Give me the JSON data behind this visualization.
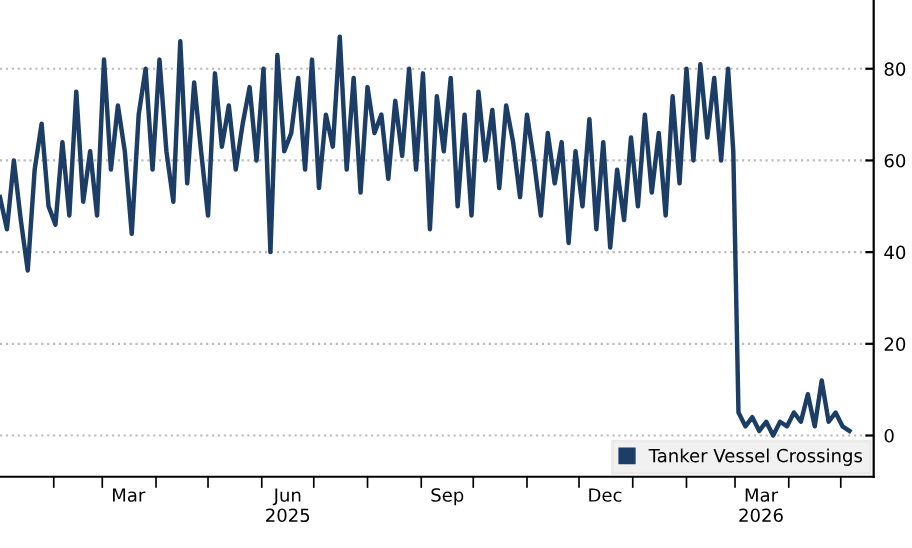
{
  "chart_data": {
    "type": "line",
    "x": [
      "2025-01-01",
      "2025-01-05",
      "2025-01-09",
      "2025-01-13",
      "2025-01-17",
      "2025-01-21",
      "2025-01-25",
      "2025-01-29",
      "2025-02-02",
      "2025-02-06",
      "2025-02-10",
      "2025-02-14",
      "2025-02-18",
      "2025-02-22",
      "2025-02-26",
      "2025-03-02",
      "2025-03-06",
      "2025-03-10",
      "2025-03-14",
      "2025-03-18",
      "2025-03-22",
      "2025-03-26",
      "2025-03-30",
      "2025-04-03",
      "2025-04-07",
      "2025-04-11",
      "2025-04-15",
      "2025-04-19",
      "2025-04-23",
      "2025-04-27",
      "2025-05-01",
      "2025-05-05",
      "2025-05-09",
      "2025-05-13",
      "2025-05-17",
      "2025-05-21",
      "2025-05-25",
      "2025-05-29",
      "2025-06-02",
      "2025-06-06",
      "2025-06-10",
      "2025-06-14",
      "2025-06-18",
      "2025-06-22",
      "2025-06-26",
      "2025-06-30",
      "2025-07-04",
      "2025-07-08",
      "2025-07-12",
      "2025-07-16",
      "2025-07-20",
      "2025-07-24",
      "2025-07-28",
      "2025-08-01",
      "2025-08-05",
      "2025-08-09",
      "2025-08-13",
      "2025-08-17",
      "2025-08-21",
      "2025-08-25",
      "2025-08-29",
      "2025-09-02",
      "2025-09-06",
      "2025-09-10",
      "2025-09-14",
      "2025-09-18",
      "2025-09-22",
      "2025-09-26",
      "2025-09-30",
      "2025-10-04",
      "2025-10-08",
      "2025-10-12",
      "2025-10-16",
      "2025-10-20",
      "2025-10-24",
      "2025-10-28",
      "2025-11-01",
      "2025-11-05",
      "2025-11-09",
      "2025-11-13",
      "2025-11-17",
      "2025-11-21",
      "2025-11-25",
      "2025-11-29",
      "2025-12-03",
      "2025-12-07",
      "2025-12-11",
      "2025-12-15",
      "2025-12-19",
      "2025-12-23",
      "2025-12-27",
      "2025-12-31",
      "2026-01-04",
      "2026-01-08",
      "2026-01-12",
      "2026-01-16",
      "2026-01-20",
      "2026-01-24",
      "2026-01-28",
      "2026-02-01",
      "2026-02-05",
      "2026-02-09",
      "2026-02-13",
      "2026-02-17",
      "2026-02-21",
      "2026-02-25",
      "2026-02-28",
      "2026-03-03",
      "2026-03-07",
      "2026-03-11",
      "2026-03-15",
      "2026-03-19",
      "2026-03-23",
      "2026-03-27",
      "2026-03-31",
      "2026-04-04",
      "2026-04-08",
      "2026-04-12",
      "2026-04-16",
      "2026-04-20",
      "2026-04-24",
      "2026-04-28",
      "2026-05-02",
      "2026-05-06"
    ],
    "series": [
      {
        "name": "Tanker Vessel Crossings",
        "color": "#1b3d66",
        "values": [
          52,
          45,
          60,
          47,
          36,
          58,
          68,
          50,
          46,
          64,
          48,
          75,
          51,
          62,
          48,
          82,
          58,
          72,
          62,
          44,
          70,
          80,
          58,
          82,
          62,
          51,
          86,
          55,
          77,
          62,
          48,
          79,
          63,
          72,
          58,
          68,
          76,
          60,
          80,
          40,
          83,
          62,
          66,
          78,
          58,
          82,
          54,
          70,
          63,
          87,
          58,
          78,
          53,
          76,
          66,
          70,
          56,
          73,
          61,
          80,
          58,
          79,
          45,
          74,
          62,
          78,
          50,
          70,
          48,
          75,
          60,
          71,
          54,
          72,
          64,
          52,
          70,
          60,
          48,
          66,
          55,
          64,
          42,
          62,
          50,
          69,
          45,
          64,
          41,
          58,
          47,
          65,
          50,
          70,
          53,
          66,
          48,
          74,
          55,
          80,
          60,
          81,
          65,
          78,
          60,
          80,
          62,
          5,
          2,
          4,
          1,
          3,
          0,
          3,
          2,
          5,
          3,
          9,
          2,
          12,
          3,
          5,
          2,
          1
        ]
      }
    ],
    "xlim": [
      "2025-01-01",
      "2026-05-20"
    ],
    "xticks": [
      {
        "value": "2025-02-01",
        "label": null
      },
      {
        "value": "2025-03-01",
        "label": null
      },
      {
        "value": "2025-03-16",
        "label": "Mar"
      },
      {
        "value": "2025-04-01",
        "label": null
      },
      {
        "value": "2025-05-01",
        "label": null
      },
      {
        "value": "2025-06-01",
        "label": null
      },
      {
        "value": "2025-06-16",
        "label": "Jun\n2025"
      },
      {
        "value": "2025-07-01",
        "label": null
      },
      {
        "value": "2025-08-01",
        "label": null
      },
      {
        "value": "2025-09-01",
        "label": null
      },
      {
        "value": "2025-09-16",
        "label": "Sep"
      },
      {
        "value": "2025-10-01",
        "label": null
      },
      {
        "value": "2025-11-01",
        "label": null
      },
      {
        "value": "2025-12-01",
        "label": null
      },
      {
        "value": "2025-12-16",
        "label": "Dec"
      },
      {
        "value": "2026-01-01",
        "label": null
      },
      {
        "value": "2026-02-01",
        "label": null
      },
      {
        "value": "2026-03-01",
        "label": null
      },
      {
        "value": "2026-03-16",
        "label": "Mar\n2026"
      },
      {
        "value": "2026-04-01",
        "label": null
      },
      {
        "value": "2026-05-01",
        "label": null
      }
    ],
    "ylim": [
      -9,
      95
    ],
    "yticks": [
      0,
      20,
      40,
      60,
      80
    ],
    "grid": "y",
    "legend": "bottom right",
    "line_style": "solid",
    "marker": "none"
  }
}
